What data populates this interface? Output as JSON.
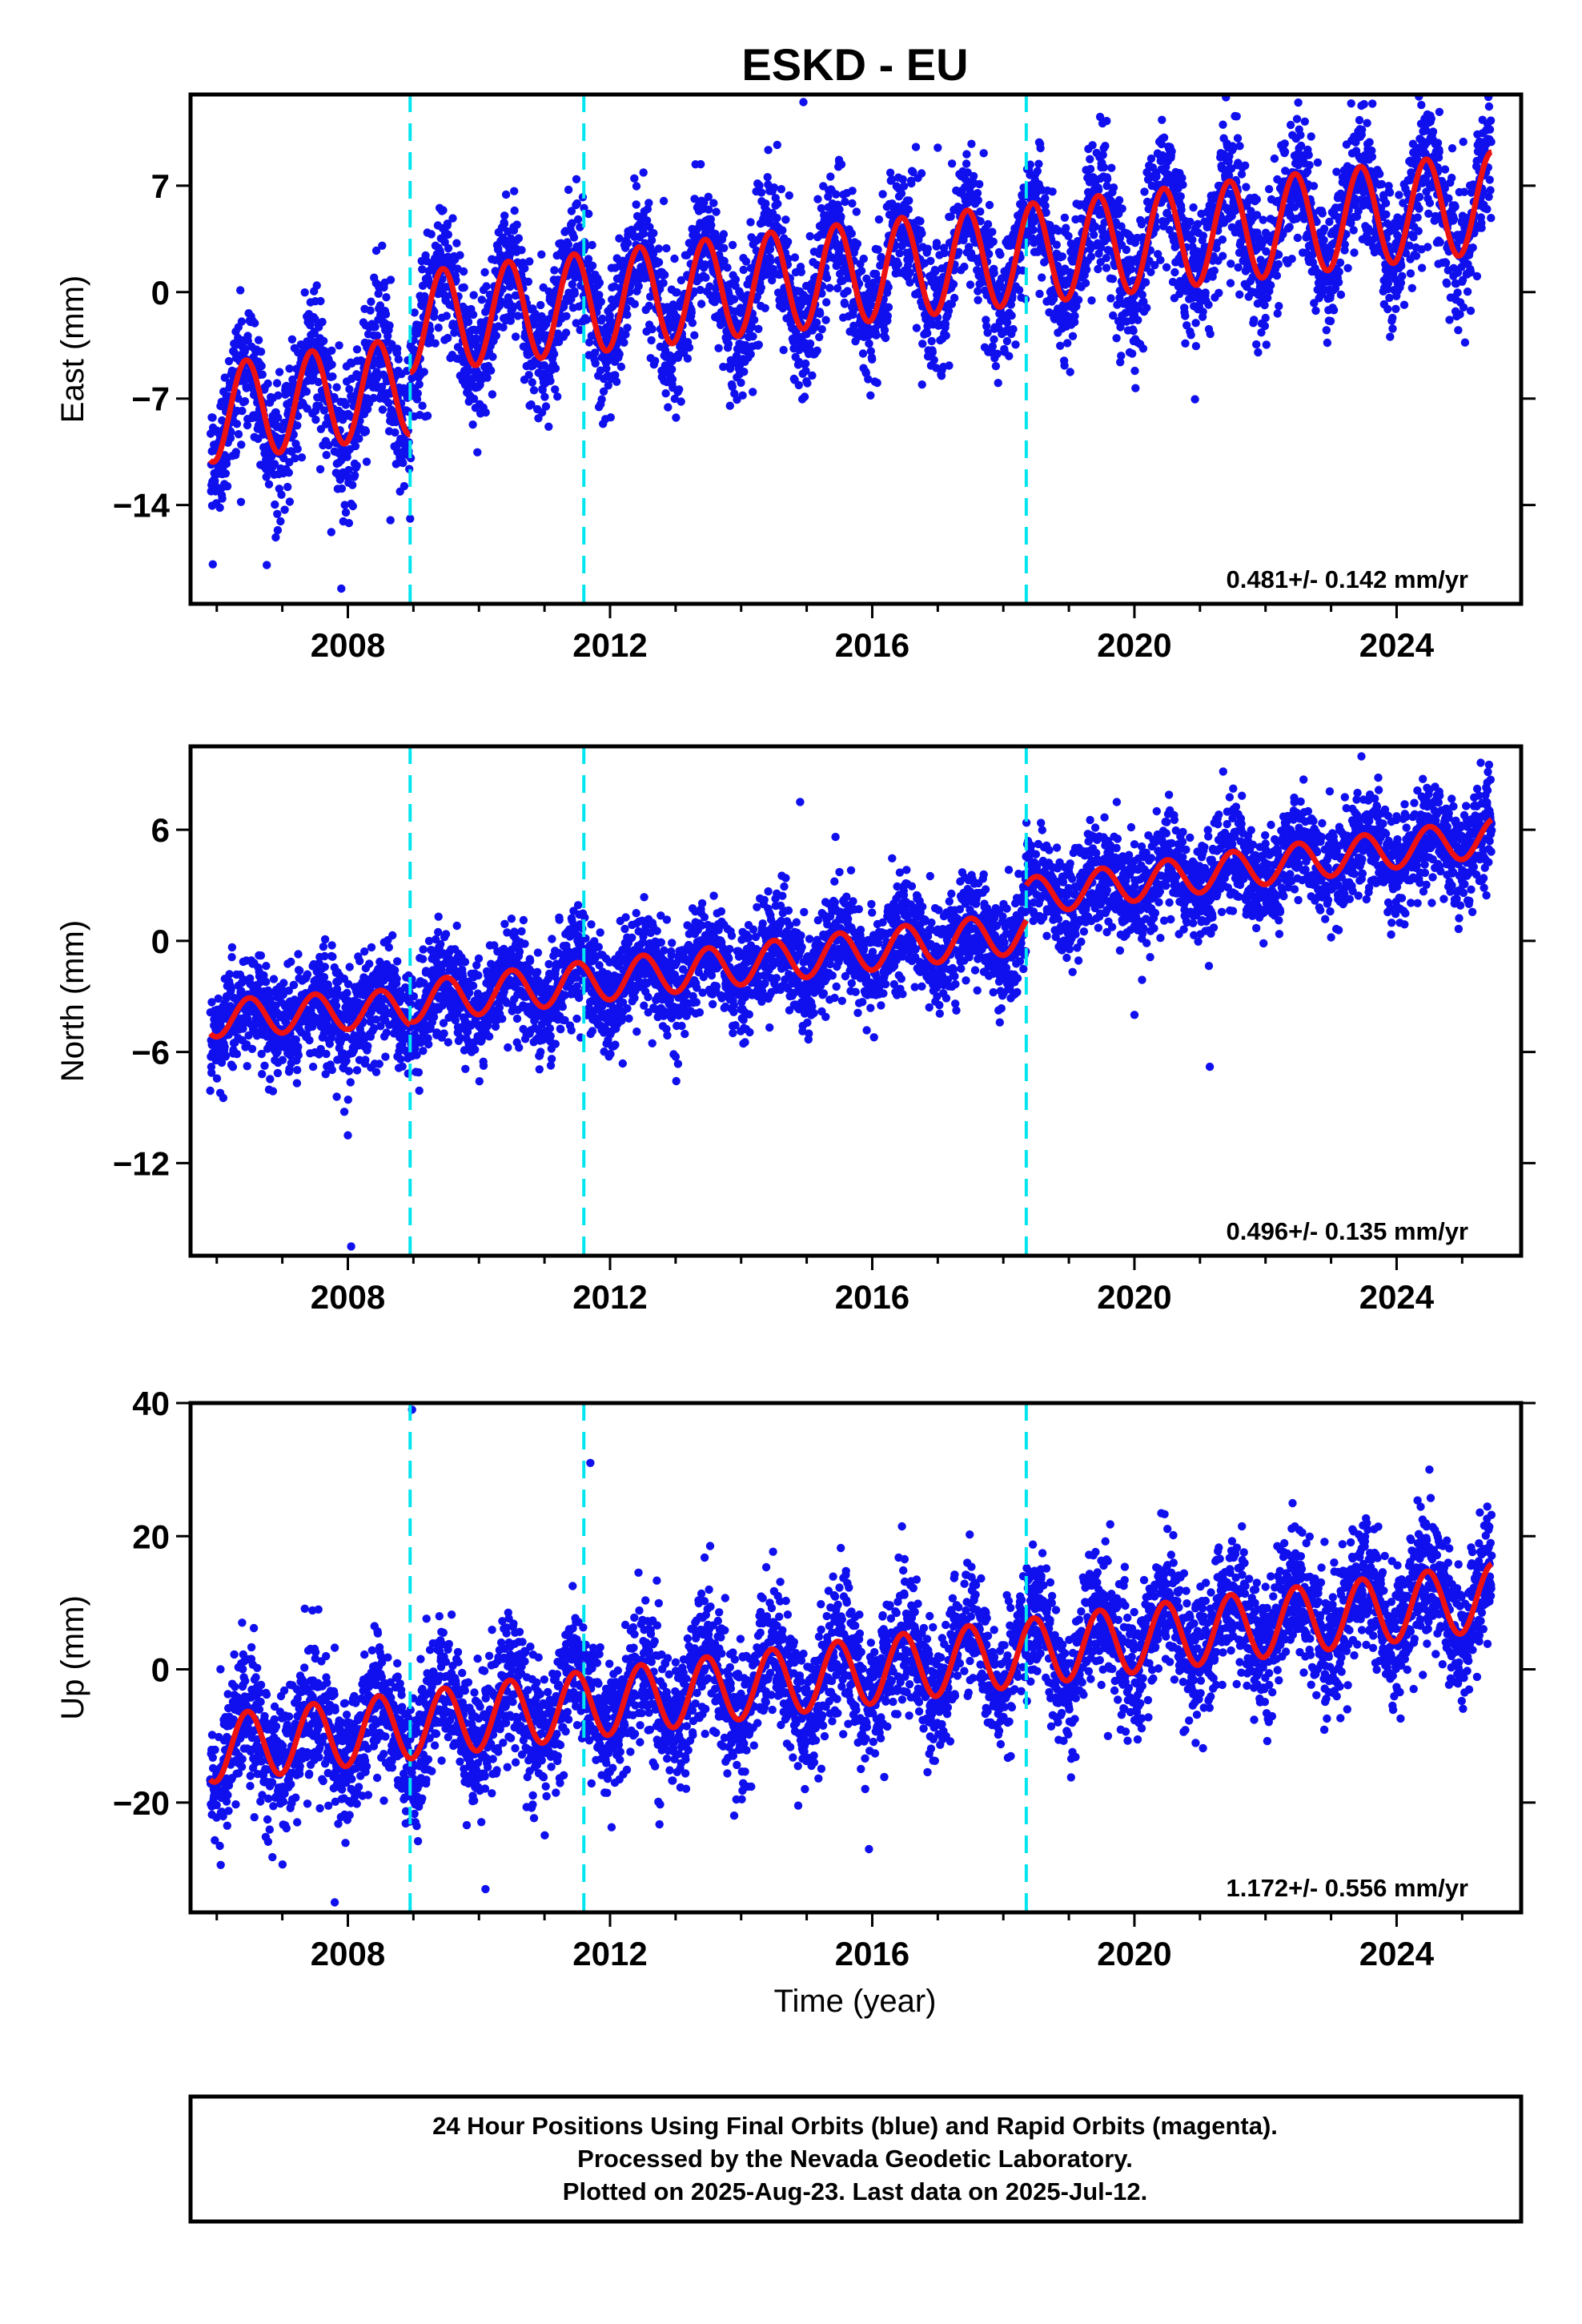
{
  "title": "ESKD - EU",
  "colors": {
    "points": "#1010ee",
    "model": "#ee1111",
    "breaks": "#00e5ee",
    "frame": "#000000"
  },
  "chart_data": [
    {
      "type": "scatter",
      "name": "east",
      "ylabel": "East (mm)",
      "xlabel": "",
      "xlim": [
        2005.6,
        2025.9
      ],
      "ylim": [
        -20.5,
        13
      ],
      "xticks": [
        2008,
        2012,
        2016,
        2020,
        2024
      ],
      "xtick_labels": [
        "2008",
        "2012",
        "2016",
        "2020",
        "2024"
      ],
      "yticks": [
        7,
        0,
        -7,
        -14
      ],
      "ytick_labels": [
        "7",
        "0",
        "−7",
        "−14"
      ],
      "grid": false,
      "rate_text": "0.481+/- 0.142 mm/yr",
      "breaks": [
        2008.95,
        2011.6,
        2018.35
      ],
      "model": {
        "segments": [
          {
            "x0": 2005.9,
            "x1": 2008.95,
            "offset": -8.0,
            "slope": 0.6,
            "amplitude": 3.2
          },
          {
            "x0": 2008.95,
            "x1": 2025.45,
            "offset": -2.0,
            "slope": 0.48,
            "amplitude": 3.3
          }
        ],
        "phase": 0.2
      },
      "points": {
        "scatter_sd": 2.2,
        "outliers": [
          [
            2014.95,
            12.5
          ],
          [
            2007.9,
            -19.5
          ],
          [
            2008.65,
            -15.0
          ],
          [
            2017.0,
            9.5
          ]
        ]
      }
    },
    {
      "type": "scatter",
      "name": "north",
      "ylabel": "North (mm)",
      "xlabel": "",
      "xlim": [
        2005.6,
        2025.9
      ],
      "ylim": [
        -17,
        10.5
      ],
      "xticks": [
        2008,
        2012,
        2016,
        2020,
        2024
      ],
      "xtick_labels": [
        "2008",
        "2012",
        "2016",
        "2020",
        "2024"
      ],
      "yticks": [
        6,
        0,
        -6,
        -12
      ],
      "ytick_labels": [
        "6",
        "0",
        "−6",
        "−12"
      ],
      "grid": false,
      "rate_text": "0.496+/- 0.135 mm/yr",
      "breaks": [
        2008.95,
        2011.6,
        2018.35
      ],
      "model": {
        "segments": [
          {
            "x0": 2005.9,
            "x1": 2008.95,
            "offset": -4.2,
            "slope": 0.2,
            "amplitude": 1.0
          },
          {
            "x0": 2008.95,
            "x1": 2018.35,
            "offset": -3.3,
            "slope": 0.4,
            "amplitude": 1.1
          },
          {
            "x0": 2018.35,
            "x1": 2025.45,
            "offset": 2.4,
            "slope": 0.45,
            "amplitude": 1.0
          }
        ],
        "phase": 0.25
      },
      "points": {
        "scatter_sd": 1.4,
        "outliers": [
          [
            2008.05,
            -16.5
          ],
          [
            2014.9,
            7.5
          ],
          [
            2008.0,
            -10.5
          ],
          [
            2020.0,
            -4.0
          ],
          [
            2021.15,
            -6.8
          ]
        ]
      }
    },
    {
      "type": "scatter",
      "name": "up",
      "ylabel": "Up (mm)",
      "xlabel": "Time (year)",
      "xlim": [
        2005.6,
        2025.9
      ],
      "ylim": [
        -36.5,
        40
      ],
      "xticks": [
        2008,
        2012,
        2016,
        2020,
        2024
      ],
      "xtick_labels": [
        "2008",
        "2012",
        "2016",
        "2020",
        "2024"
      ],
      "yticks": [
        40,
        20,
        0,
        -20
      ],
      "ytick_labels": [
        "40",
        "20",
        "0",
        "−20"
      ],
      "grid": false,
      "rate_text": "1.172+/- 0.556 mm/yr",
      "breaks": [
        2008.95,
        2011.6,
        2018.35
      ],
      "model": {
        "segments": [
          {
            "x0": 2005.9,
            "x1": 2025.45,
            "offset": -12.0,
            "slope": 1.17,
            "amplitude": 5.0
          }
        ],
        "phase": 0.22
      },
      "points": {
        "scatter_sd": 5.0,
        "outliers": [
          [
            2008.98,
            39.0
          ],
          [
            2011.7,
            31.0
          ],
          [
            2007.8,
            -35.0
          ],
          [
            2010.1,
            -33.0
          ],
          [
            2015.95,
            -27.0
          ],
          [
            2024.5,
            30.0
          ]
        ]
      }
    }
  ],
  "footer": {
    "line1": "24 Hour Positions Using Final Orbits (blue) and Rapid Orbits (magenta).",
    "line2": "Processed by the Nevada Geodetic Laboratory.",
    "line3": "Plotted on 2025-Aug-23. Last data on 2025-Jul-12."
  }
}
